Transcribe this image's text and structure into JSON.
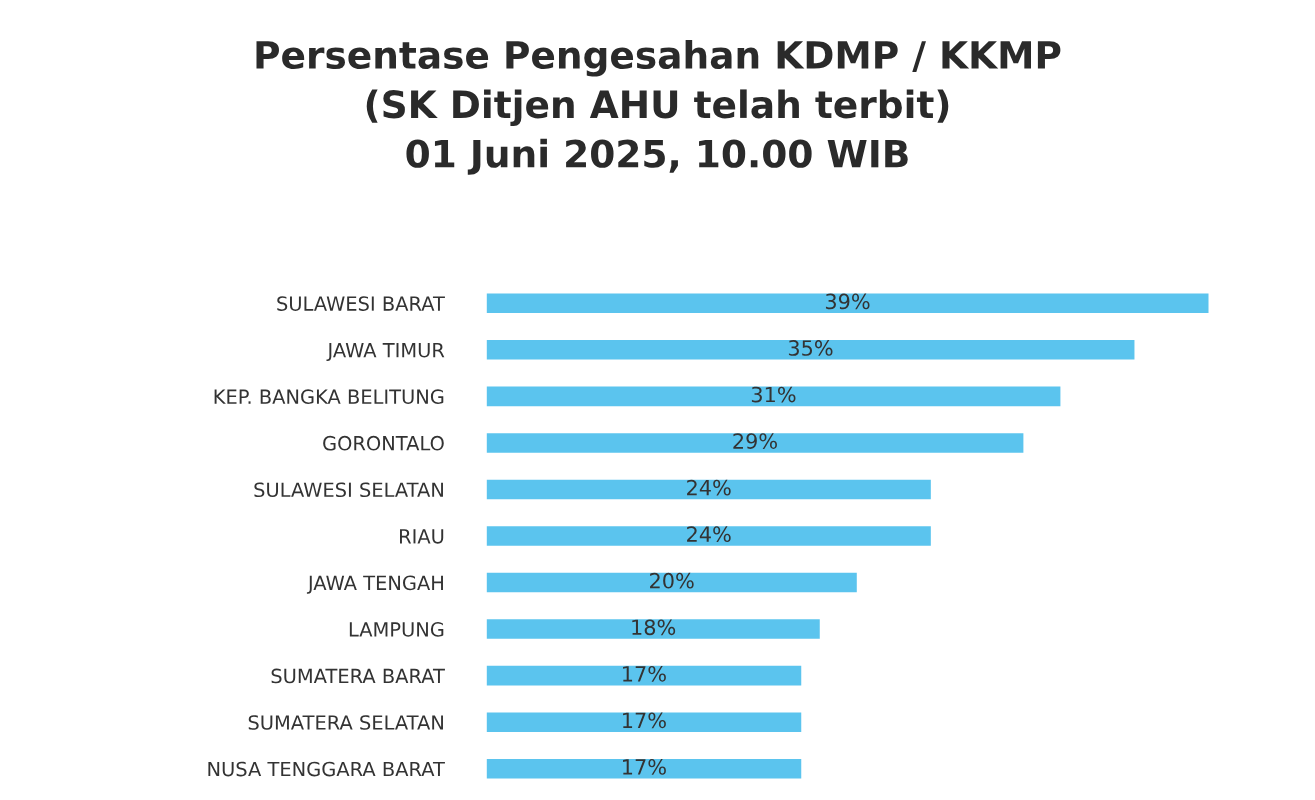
{
  "chart_data": {
    "type": "bar",
    "orientation": "horizontal",
    "title": "Persentase Pengesahan KDMP / KKMP\n(SK Ditjen AHU telah terbit)\n01 Juni 2025, 10.00 WIB",
    "categories": [
      "SULAWESI BARAT",
      "JAWA TIMUR",
      "KEP. BANGKA BELITUNG",
      "GORONTALO",
      "SULAWESI SELATAN",
      "RIAU",
      "JAWA TENGAH",
      "LAMPUNG",
      "SUMATERA BARAT",
      "SUMATERA SELATAN",
      "NUSA TENGGARA BARAT"
    ],
    "values": [
      39,
      35,
      31,
      29,
      24,
      24,
      20,
      18,
      17,
      17,
      17
    ],
    "value_labels": [
      "39%",
      "35%",
      "31%",
      "29%",
      "24%",
      "24%",
      "20%",
      "18%",
      "17%",
      "17%",
      "17%"
    ],
    "color": "#5bc4ee",
    "grid": false,
    "legend": false
  }
}
